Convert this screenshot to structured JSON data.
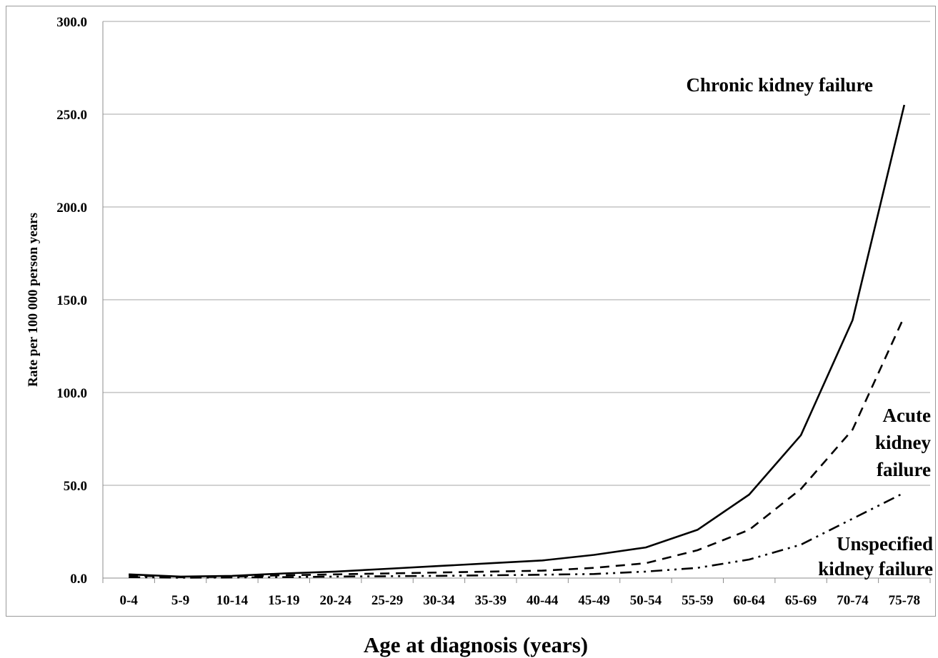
{
  "chart_data": {
    "type": "line",
    "title": "",
    "xlabel": "Age at diagnosis (years)",
    "ylabel": "Rate per 100 000 person years",
    "categories": [
      "0-4",
      "5-9",
      "10-14",
      "15-19",
      "20-24",
      "25-29",
      "30-34",
      "35-39",
      "40-44",
      "45-49",
      "50-54",
      "55-59",
      "60-64",
      "65-69",
      "70-74",
      "75-78"
    ],
    "ylim": [
      0,
      300
    ],
    "yticks": [
      "0.0",
      "50.0",
      "100.0",
      "150.0",
      "200.0",
      "250.0",
      "300.0"
    ],
    "grid": true,
    "legend": "none",
    "series": [
      {
        "name": "",
        "label_lines": [
          "Chronic kidney failure"
        ],
        "style": "solid",
        "values": [
          2.0,
          0.8,
          1.2,
          2.5,
          3.5,
          5.0,
          6.5,
          8.0,
          9.5,
          12.5,
          16.5,
          26.0,
          45.0,
          77.0,
          139.0,
          255.0
        ]
      },
      {
        "name": "",
        "label_lines": [
          "Acute",
          "kidney",
          "failure"
        ],
        "style": "dashed",
        "values": [
          1.5,
          0.5,
          0.8,
          1.5,
          2.0,
          2.5,
          3.0,
          3.5,
          4.0,
          5.5,
          8.0,
          15.0,
          26.0,
          48.0,
          80.0,
          141.0
        ]
      },
      {
        "name": "",
        "label_lines": [
          "Unspecified",
          "kidney failure"
        ],
        "style": "dashdotdot",
        "values": [
          0.5,
          0.2,
          0.3,
          0.5,
          0.8,
          1.0,
          1.2,
          1.5,
          1.8,
          2.2,
          3.5,
          5.5,
          10.0,
          18.0,
          32.0,
          46.0
        ]
      }
    ]
  }
}
